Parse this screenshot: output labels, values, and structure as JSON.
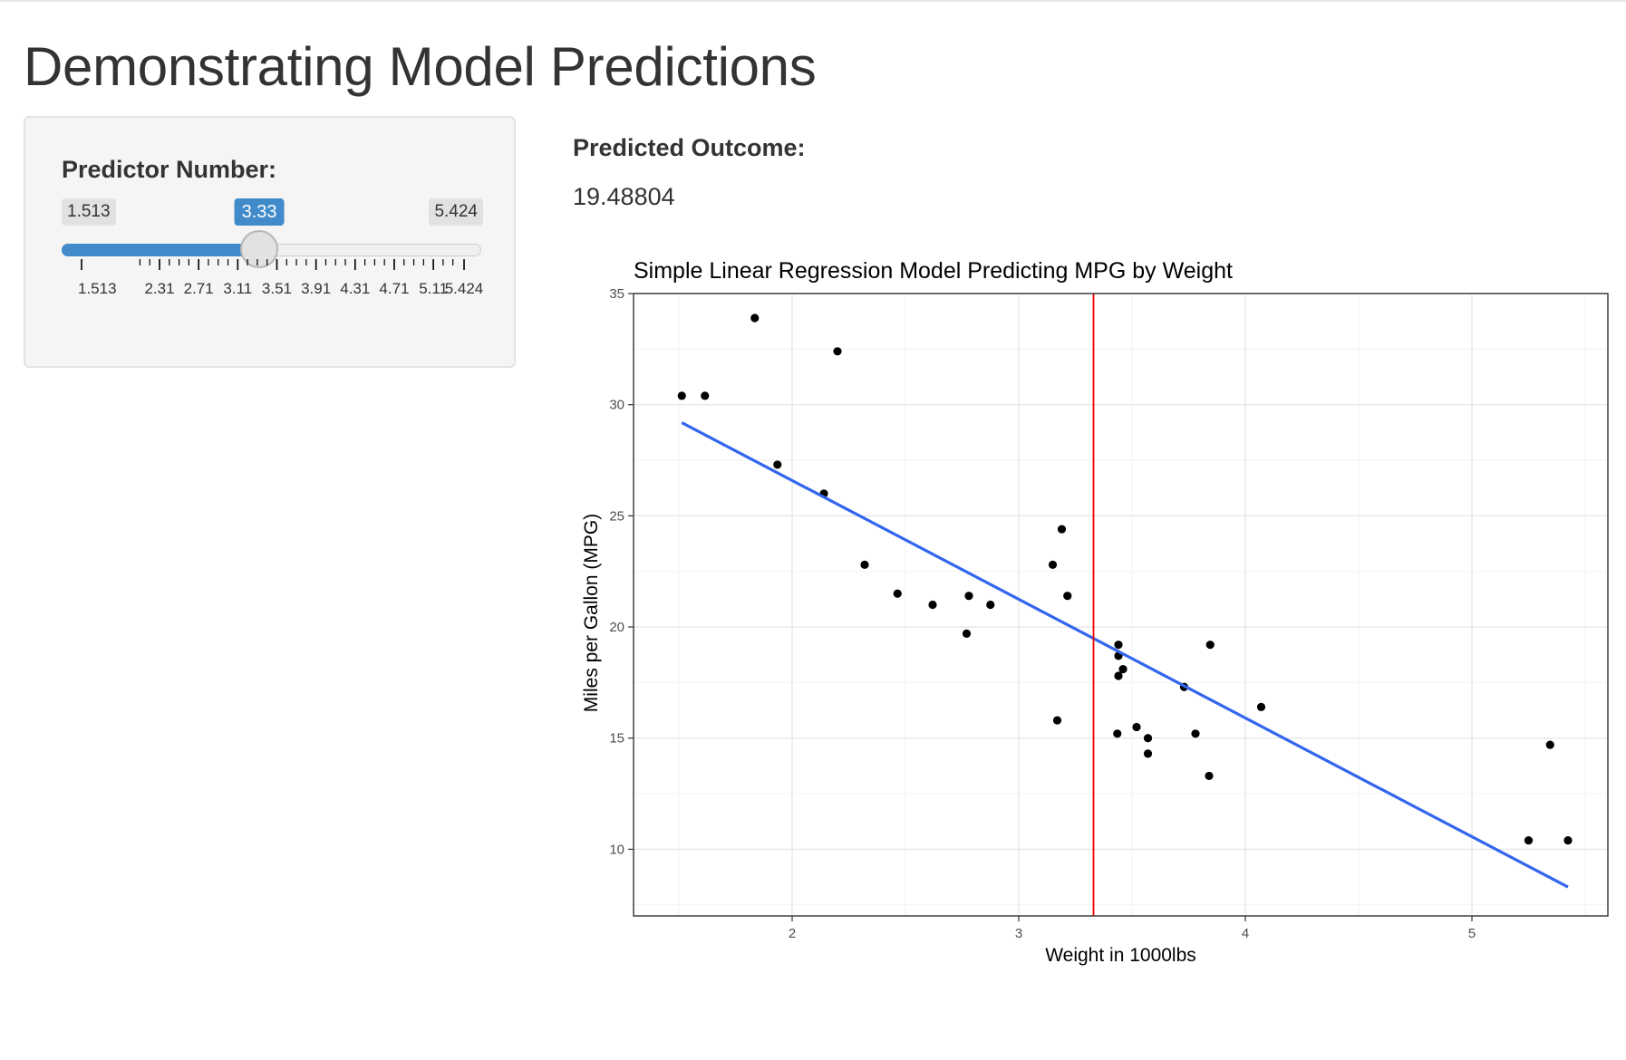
{
  "page": {
    "title": "Demonstrating Model Predictions"
  },
  "slider": {
    "label": "Predictor Number:",
    "min": 1.513,
    "max": 5.424,
    "value": 3.33,
    "min_label": "1.513",
    "max_label": "5.424",
    "value_label": "3.33",
    "tick_labels": [
      "1.513",
      "2.31",
      "2.71",
      "3.11",
      "3.51",
      "3.91",
      "4.31",
      "4.71",
      "5.11",
      "5.424"
    ],
    "tick_values": [
      1.513,
      2.31,
      2.71,
      3.11,
      3.51,
      3.91,
      4.31,
      4.71,
      5.11,
      5.424
    ],
    "accent_color": "#428bca"
  },
  "prediction": {
    "label": "Predicted Outcome:",
    "value": "19.48804"
  },
  "chart_data": {
    "type": "scatter",
    "title": "Simple Linear Regression Model Predicting MPG by Weight",
    "xlabel": "Weight in 1000lbs",
    "ylabel": "Miles per Gallon (MPG)",
    "xlim": [
      1.3,
      5.6
    ],
    "ylim": [
      7,
      35
    ],
    "xticks": [
      2,
      3,
      4,
      5
    ],
    "yticks": [
      10,
      15,
      20,
      25,
      30,
      35
    ],
    "grid": true,
    "points": [
      [
        2.62,
        21.0
      ],
      [
        2.875,
        21.0
      ],
      [
        2.32,
        22.8
      ],
      [
        3.215,
        21.4
      ],
      [
        3.44,
        18.7
      ],
      [
        3.46,
        18.1
      ],
      [
        3.57,
        14.3
      ],
      [
        3.19,
        24.4
      ],
      [
        3.15,
        22.8
      ],
      [
        3.44,
        19.2
      ],
      [
        3.44,
        17.8
      ],
      [
        4.07,
        16.4
      ],
      [
        3.73,
        17.3
      ],
      [
        3.78,
        15.2
      ],
      [
        5.25,
        10.4
      ],
      [
        5.424,
        10.4
      ],
      [
        5.345,
        14.7
      ],
      [
        2.2,
        32.4
      ],
      [
        1.615,
        30.4
      ],
      [
        1.835,
        33.9
      ],
      [
        2.465,
        21.5
      ],
      [
        3.52,
        15.5
      ],
      [
        3.435,
        15.2
      ],
      [
        3.84,
        13.3
      ],
      [
        3.845,
        19.2
      ],
      [
        1.935,
        27.3
      ],
      [
        2.14,
        26.0
      ],
      [
        1.513,
        30.4
      ],
      [
        3.17,
        15.8
      ],
      [
        2.77,
        19.7
      ],
      [
        3.57,
        15.0
      ],
      [
        2.78,
        21.4
      ]
    ],
    "regression_line": {
      "x": [
        1.513,
        5.424
      ],
      "y": [
        29.19,
        8.3
      ],
      "color": "#3366ee"
    },
    "vline": {
      "x": 3.33,
      "color": "#ee0000"
    },
    "point_color": "#000000"
  }
}
